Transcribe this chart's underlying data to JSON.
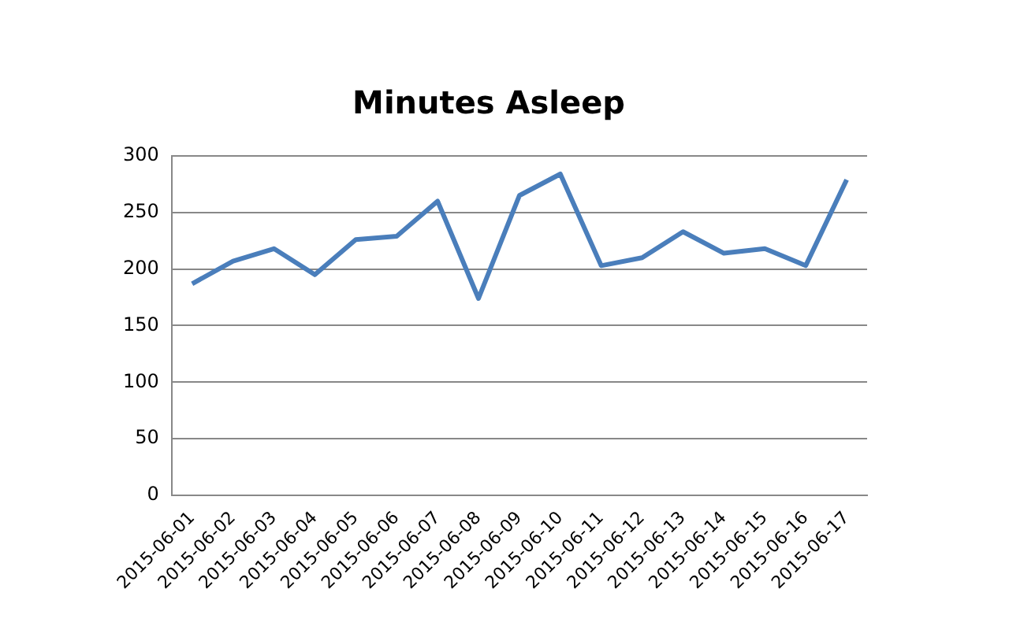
{
  "chart_data": {
    "type": "line",
    "title": "Minutes Asleep",
    "categories": [
      "2015-06-01",
      "2015-06-02",
      "2015-06-03",
      "2015-06-04",
      "2015-06-05",
      "2015-06-06",
      "2015-06-07",
      "2015-06-08",
      "2015-06-09",
      "2015-06-10",
      "2015-06-11",
      "2015-06-12",
      "2015-06-13",
      "2015-06-14",
      "2015-06-15",
      "2015-06-16",
      "2015-06-17"
    ],
    "series": [
      {
        "color": "#4a7ebb",
        "values": [
          187,
          207,
          218,
          195,
          226,
          229,
          260,
          174,
          265,
          284,
          203,
          210,
          233,
          214,
          218,
          203,
          279
        ]
      }
    ],
    "ylim": [
      0,
      300
    ],
    "yticks": [
      0,
      50,
      100,
      150,
      200,
      250,
      300
    ],
    "grid": "y",
    "legend": false,
    "marker": "none",
    "line_style": "solid"
  }
}
